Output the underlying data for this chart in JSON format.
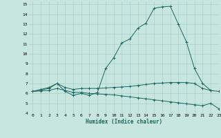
{
  "xlabel": "Humidex (Indice chaleur)",
  "bg_color": "#c8e6e0",
  "grid_color": "#a8cec8",
  "line_color": "#1a6660",
  "xlim": [
    -0.5,
    23
  ],
  "ylim": [
    4,
    15.3
  ],
  "yticks": [
    4,
    5,
    6,
    7,
    8,
    9,
    10,
    11,
    12,
    13,
    14,
    15
  ],
  "xticks": [
    0,
    1,
    2,
    3,
    4,
    5,
    6,
    7,
    8,
    9,
    10,
    11,
    12,
    13,
    14,
    15,
    16,
    17,
    18,
    19,
    20,
    21,
    22,
    23
  ],
  "series": [
    {
      "x": [
        0,
        1,
        2,
        3,
        4,
        5,
        6,
        7,
        8,
        9,
        10,
        11,
        12,
        13,
        14,
        15,
        16,
        17,
        18,
        19,
        20,
        21,
        22
      ],
      "y": [
        6.2,
        6.4,
        6.6,
        7.0,
        6.2,
        5.8,
        6.0,
        5.8,
        6.1,
        8.5,
        9.6,
        11.1,
        11.5,
        12.6,
        13.1,
        14.6,
        14.75,
        14.8,
        13.0,
        11.2,
        8.5,
        7.0,
        6.3
      ]
    },
    {
      "x": [
        0,
        1,
        2,
        3,
        4,
        5,
        6,
        7,
        8,
        9,
        10,
        11,
        12,
        13,
        14,
        15,
        16,
        17,
        18,
        19,
        20,
        21,
        22,
        23
      ],
      "y": [
        6.2,
        6.35,
        6.5,
        7.0,
        6.6,
        6.4,
        6.5,
        6.5,
        6.5,
        6.55,
        6.6,
        6.65,
        6.7,
        6.8,
        6.9,
        7.0,
        7.05,
        7.1,
        7.1,
        7.1,
        7.0,
        6.5,
        6.3,
        6.2
      ]
    },
    {
      "x": [
        0,
        1,
        2,
        3,
        4,
        5,
        6,
        7,
        8,
        9,
        10,
        11,
        12,
        13,
        14,
        15,
        16,
        17,
        18,
        19,
        20,
        21,
        22,
        23
      ],
      "y": [
        6.2,
        6.25,
        6.3,
        6.5,
        6.3,
        6.1,
        6.1,
        6.0,
        5.95,
        5.9,
        5.85,
        5.75,
        5.65,
        5.55,
        5.45,
        5.35,
        5.25,
        5.15,
        5.05,
        4.95,
        4.85,
        4.75,
        5.0,
        4.45
      ]
    }
  ]
}
